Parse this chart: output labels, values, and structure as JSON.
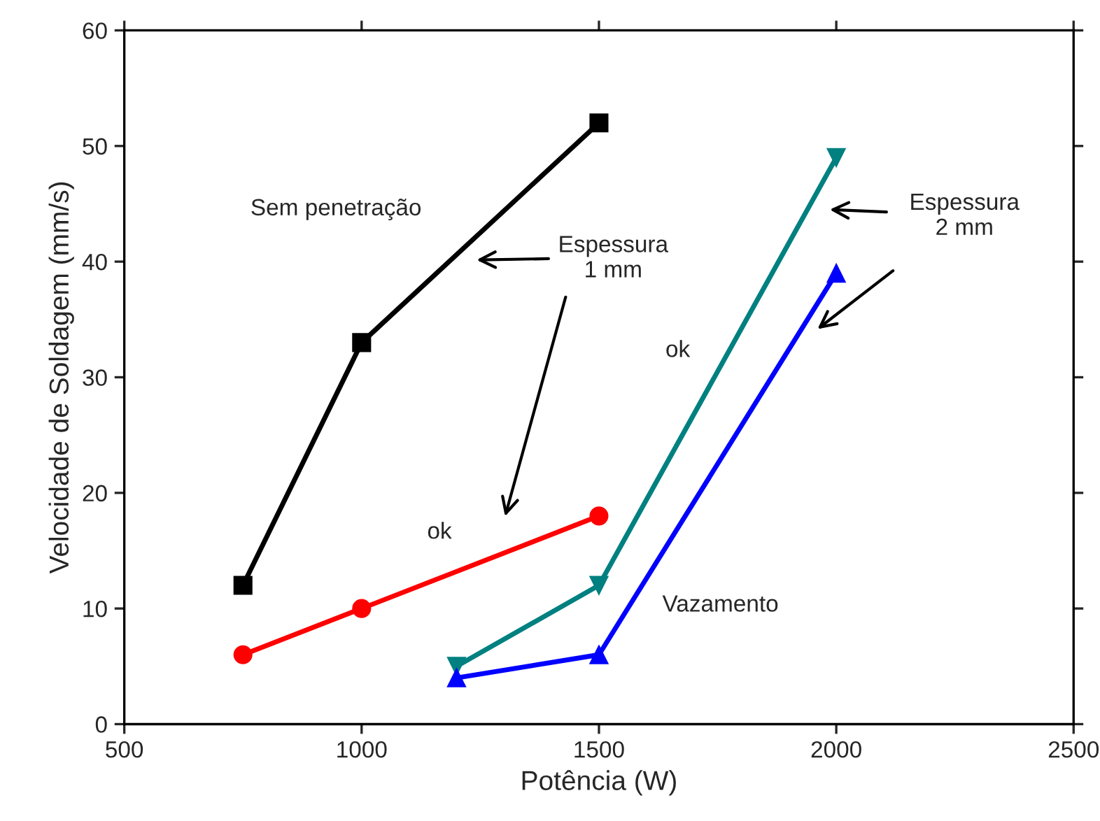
{
  "chart_data": {
    "type": "line",
    "xlabel": "Potência (W)",
    "ylabel": "Velocidade de Soldagem (mm/s)",
    "xlim": [
      500,
      2500
    ],
    "xticks": [
      500,
      1000,
      1500,
      2000,
      2500
    ],
    "ylim": [
      0,
      60
    ],
    "yticks": [
      0,
      10,
      20,
      30,
      40,
      50,
      60
    ],
    "grid": false,
    "line_style": "solid",
    "series": [
      {
        "color": "#000000",
        "marker": "square",
        "x": [
          750,
          1000,
          1500
        ],
        "values": [
          12,
          33,
          52
        ]
      },
      {
        "color": "#ff0000",
        "marker": "circle",
        "x": [
          750,
          1000,
          1500
        ],
        "values": [
          6,
          10,
          18
        ]
      },
      {
        "color": "#008080",
        "marker": "triangle_down",
        "x": [
          1200,
          1500,
          2000
        ],
        "values": [
          5,
          12,
          49
        ]
      },
      {
        "color": "#0000ff",
        "marker": "triangle",
        "x": [
          1200,
          1500,
          2000
        ],
        "values": [
          4,
          6,
          39
        ]
      }
    ],
    "annotations": [
      "Sem penetração",
      "Espessura\n1 mm",
      "ok",
      "ok",
      "Vazamento",
      "Espessura\n2 mm"
    ]
  }
}
